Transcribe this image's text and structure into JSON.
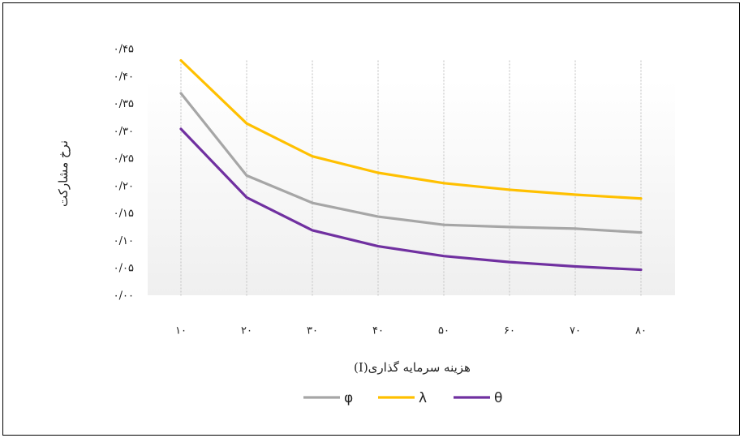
{
  "chart_data": {
    "type": "line",
    "xlabel": "هزینه سرمایه گذاری(I)",
    "ylabel": "نرخ مشارکت",
    "categories": [
      "۱۰",
      "۲۰",
      "۳۰",
      "۴۰",
      "۵۰",
      "۶۰",
      "۷۰",
      "۸۰"
    ],
    "y_tick_labels": [
      "۰/۰۰",
      "۰/۰۵",
      "۰/۱۰",
      "۰/۱۵",
      "۰/۲۰",
      "۰/۲۵",
      "۰/۳۰",
      "۰/۳۵",
      "۰/۴۰",
      "۰/۴۵"
    ],
    "ylim": [
      0,
      0.45
    ],
    "grid": "vertical dotted",
    "legend_position": "bottom",
    "series": [
      {
        "name": "φ",
        "color": "#a6a6a6",
        "values": [
          0.37,
          0.22,
          0.17,
          0.145,
          0.13,
          0.126,
          0.123,
          0.116
        ]
      },
      {
        "name": "λ",
        "color": "#ffc000",
        "values": [
          0.43,
          0.315,
          0.255,
          0.225,
          0.206,
          0.194,
          0.185,
          0.178
        ]
      },
      {
        "name": "θ",
        "color": "#7030a0",
        "values": [
          0.305,
          0.18,
          0.12,
          0.091,
          0.073,
          0.062,
          0.054,
          0.048
        ]
      }
    ]
  }
}
